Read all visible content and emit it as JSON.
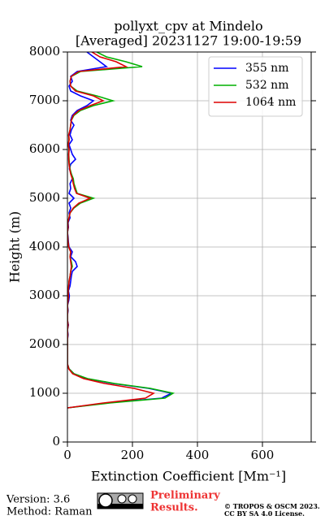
{
  "chart_data": {
    "type": "profile",
    "title": [
      "pollyxt_cpv at Mindelo",
      "[Averaged] 20231127 19:00-19:59"
    ],
    "x_label": "Extinction Coefficient [Mm⁻¹]",
    "y_label": "Height (m)",
    "xlim": [
      0,
      750
    ],
    "xticks": [
      0,
      200,
      400,
      600
    ],
    "ylim": [
      0,
      8000
    ],
    "yticks": [
      0,
      1000,
      2000,
      3000,
      4000,
      5000,
      6000,
      7000,
      8000
    ],
    "grid": true,
    "legend": "upper right",
    "heights": [
      700,
      800,
      900,
      1000,
      1100,
      1200,
      1300,
      1400,
      1500,
      1600,
      1700,
      1800,
      1900,
      2000,
      2100,
      2200,
      2300,
      2400,
      2500,
      2600,
      2700,
      2800,
      2900,
      3000,
      3100,
      3200,
      3300,
      3400,
      3500,
      3600,
      3700,
      3800,
      3900,
      4000,
      4100,
      4200,
      4300,
      4400,
      4500,
      4600,
      4700,
      4800,
      4900,
      5000,
      5100,
      5200,
      5300,
      5400,
      5500,
      5600,
      5700,
      5800,
      5900,
      6000,
      6100,
      6200,
      6300,
      6400,
      6500,
      6600,
      6700,
      6800,
      6900,
      7000,
      7100,
      7200,
      7300,
      7400,
      7500,
      7600,
      7700,
      7800,
      7900,
      8000
    ],
    "series": [
      {
        "name": "355 nm",
        "color": "#0000ff",
        "values": [
          0,
          120,
          290,
          320,
          250,
          140,
          60,
          20,
          5,
          0,
          0,
          0,
          0,
          0,
          0,
          2,
          0,
          3,
          0,
          0,
          2,
          0,
          4,
          6,
          3,
          8,
          10,
          12,
          15,
          30,
          25,
          10,
          15,
          5,
          3,
          2,
          0,
          3,
          2,
          8,
          5,
          10,
          5,
          20,
          5,
          10,
          8,
          15,
          12,
          6,
          10,
          25,
          15,
          10,
          5,
          15,
          8,
          12,
          20,
          10,
          15,
          30,
          60,
          80,
          40,
          10,
          5,
          15,
          10,
          30,
          120,
          100,
          80,
          60
        ]
      },
      {
        "name": "532 nm",
        "color": "#00b000",
        "values": [
          0,
          130,
          300,
          325,
          255,
          145,
          62,
          20,
          5,
          0,
          0,
          0,
          0,
          0,
          0,
          1,
          0,
          2,
          0,
          0,
          1,
          0,
          2,
          3,
          2,
          4,
          5,
          8,
          10,
          15,
          12,
          8,
          10,
          4,
          2,
          1,
          0,
          2,
          1,
          5,
          8,
          20,
          40,
          80,
          30,
          25,
          20,
          18,
          12,
          8,
          6,
          5,
          4,
          5,
          3,
          5,
          4,
          8,
          10,
          12,
          20,
          40,
          80,
          140,
          90,
          30,
          10,
          8,
          12,
          40,
          230,
          180,
          120,
          90
        ]
      },
      {
        "name": "1064 nm",
        "color": "#dd0000",
        "values": [
          0,
          110,
          240,
          265,
          205,
          115,
          50,
          16,
          4,
          0,
          0,
          0,
          0,
          0,
          0,
          1,
          0,
          2,
          0,
          0,
          1,
          0,
          2,
          3,
          2,
          4,
          5,
          8,
          10,
          12,
          10,
          8,
          10,
          4,
          2,
          1,
          0,
          2,
          1,
          5,
          8,
          18,
          35,
          70,
          28,
          22,
          18,
          15,
          10,
          7,
          5,
          4,
          4,
          5,
          3,
          5,
          4,
          8,
          10,
          12,
          18,
          35,
          70,
          110,
          80,
          25,
          10,
          8,
          12,
          35,
          180,
          150,
          100,
          75
        ]
      }
    ]
  },
  "footer": {
    "version": "Version: 3.6",
    "method": "Method: Raman",
    "preliminary": [
      "Preliminary",
      "Results."
    ],
    "copyright": [
      "© TROPOS & OSCM 2023.",
      "CC BY SA 4.0 License."
    ]
  }
}
